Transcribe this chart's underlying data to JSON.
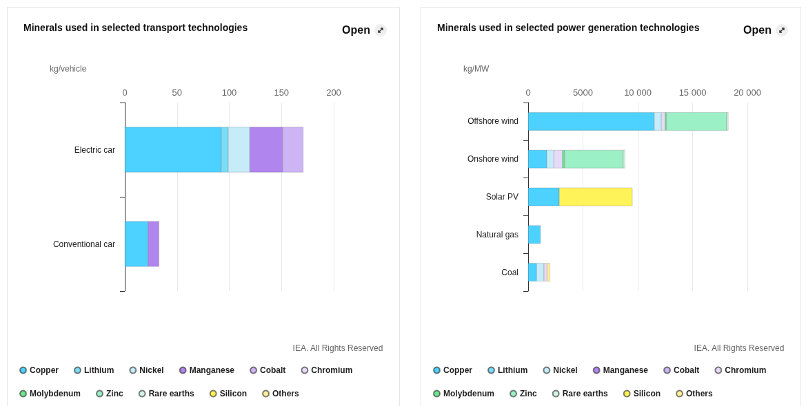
{
  "chart_data": [
    {
      "type": "bar",
      "orientation": "horizontal",
      "stacked": true,
      "title": "Minerals used in selected transport technologies",
      "xlabel": "kg/vehicle",
      "categories": [
        "Electric car",
        "Conventional car"
      ],
      "series": [
        {
          "name": "Copper",
          "color": "#4dd2ff",
          "values": [
            92.5,
            22.2
          ]
        },
        {
          "name": "Lithium",
          "color": "#7ddcf5",
          "values": [
            6.6,
            null
          ]
        },
        {
          "name": "Nickel",
          "color": "#c6ecfa",
          "values": [
            20.5,
            null
          ]
        },
        {
          "name": "Manganese",
          "color": "#b086ee",
          "values": [
            31.5,
            10.6
          ]
        },
        {
          "name": "Cobalt",
          "color": "#cdb5f5",
          "values": [
            19.8,
            null
          ]
        },
        {
          "name": "Chromium",
          "color": "#e6daf8",
          "values": [
            null,
            null
          ]
        },
        {
          "name": "Molybdenum",
          "color": "#6ee690",
          "values": [
            null,
            null
          ]
        },
        {
          "name": "Zinc",
          "color": "#9bf0c5",
          "values": [
            null,
            null
          ]
        },
        {
          "name": "Rare earths",
          "color": "#d3f5e3",
          "values": [
            null,
            null
          ]
        },
        {
          "name": "Silicon",
          "color": "#fff35a",
          "values": [
            null,
            null
          ]
        },
        {
          "name": "Others",
          "color": "#fff09a",
          "values": [
            null,
            null
          ]
        }
      ],
      "xlim": [
        0,
        200
      ],
      "xticks": [
        0,
        50,
        100,
        150,
        200
      ],
      "grid": "x",
      "legend": "bottom",
      "annotations": [
        "Open",
        "IEA. All Rights Reserved"
      ]
    },
    {
      "type": "bar",
      "orientation": "horizontal",
      "stacked": true,
      "title": "Minerals used in selected power generation technologies",
      "xlabel": "kg/MW",
      "categories": [
        "Offshore wind",
        "Onshore wind",
        "Solar PV",
        "Natural gas",
        "Coal"
      ],
      "series": [
        {
          "name": "Copper",
          "color": "#4dd2ff",
          "values": [
            11500,
            1700,
            2840,
            1130,
            770
          ]
        },
        {
          "name": "Lithium",
          "color": "#7ddcf5",
          "values": [
            null,
            null,
            null,
            null,
            null
          ]
        },
        {
          "name": "Nickel",
          "color": "#c6ecfa",
          "values": [
            650,
            650,
            null,
            null,
            670
          ]
        },
        {
          "name": "Manganese",
          "color": "#b086ee",
          "values": [
            null,
            null,
            null,
            null,
            null
          ]
        },
        {
          "name": "Cobalt",
          "color": "#cdb5f5",
          "values": [
            null,
            null,
            null,
            null,
            null
          ]
        },
        {
          "name": "Chromium",
          "color": "#e6daf8",
          "values": [
            350,
            780,
            null,
            null,
            290
          ]
        },
        {
          "name": "Molybdenum",
          "color": "#6ee690",
          "values": [
            110,
            190,
            null,
            null,
            null
          ]
        },
        {
          "name": "Zinc",
          "color": "#9bf0c5",
          "values": [
            5500,
            5350,
            null,
            null,
            null
          ]
        },
        {
          "name": "Rare earths",
          "color": "#d3f5e3",
          "values": [
            150,
            170,
            null,
            null,
            null
          ]
        },
        {
          "name": "Silicon",
          "color": "#fff35a",
          "values": [
            null,
            null,
            6670,
            null,
            null
          ]
        },
        {
          "name": "Others",
          "color": "#fff09a",
          "values": [
            null,
            null,
            null,
            null,
            270
          ]
        }
      ],
      "xlim": [
        0,
        20000
      ],
      "xticks": [
        0,
        5000,
        {
          "value": 10000,
          "label": "10 000"
        },
        {
          "value": 15000,
          "label": "15 000"
        },
        {
          "value": 20000,
          "label": "20 000"
        }
      ],
      "grid": "x",
      "legend": "bottom",
      "annotations": [
        "Open",
        "IEA. All Rights Reserved"
      ]
    }
  ]
}
